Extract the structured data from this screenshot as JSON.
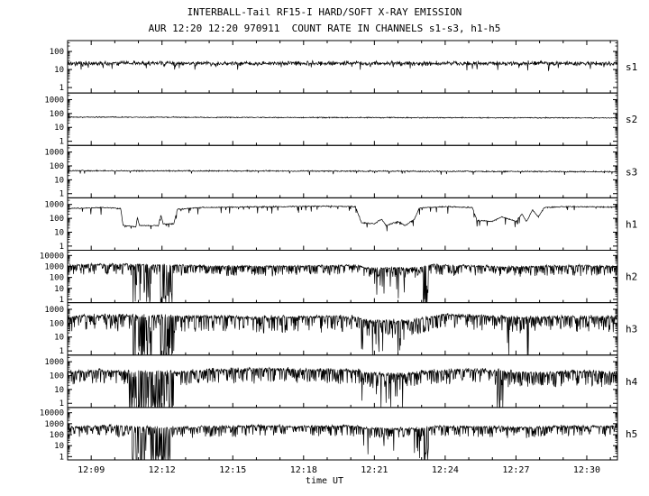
{
  "header": {
    "title": "INTERBALL-Tail RF15-I HARD/SOFT X-RAY EMISSION",
    "subtitle": "AUR 12:20 12:20 970911  COUNT RATE IN CHANNELS s1-s3, h1-h5"
  },
  "xlabel": "time UT",
  "chart_data": {
    "type": "line",
    "title": "INTERBALL-Tail RF15-I HARD/SOFT X-RAY EMISSION",
    "subtitle": "AUR 12:20 12:20 970911  COUNT RATE IN CHANNELS s1-s3, h1-h5",
    "xlabel": "time UT",
    "x_unit": "minutes after 12:00 UT",
    "x_domain": [
      8.0,
      31.3
    ],
    "x_ticks": [
      {
        "t": 9,
        "label": "12:09"
      },
      {
        "t": 12,
        "label": "12:12"
      },
      {
        "t": 15,
        "label": "12:15"
      },
      {
        "t": 18,
        "label": "12:18"
      },
      {
        "t": 21,
        "label": "12:21"
      },
      {
        "t": 24,
        "label": "12:24"
      },
      {
        "t": 27,
        "label": "12:27"
      },
      {
        "t": 30,
        "label": "12:30"
      }
    ],
    "y_scale": "log",
    "panels": [
      {
        "name": "s1",
        "ylim": [
          0.5,
          400
        ],
        "yticks": [
          100,
          10,
          1
        ],
        "base_level_counts": [
          [
            8,
            22
          ],
          [
            31.3,
            22
          ]
        ],
        "noise_log10": 0.15,
        "down_spikes": {
          "prob": 0.04,
          "depth_log10": 0.35
        },
        "dropout_clusters": []
      },
      {
        "name": "s2",
        "ylim": [
          0.5,
          3000
        ],
        "yticks": [
          1000,
          100,
          10,
          1
        ],
        "base_level_counts": [
          [
            8,
            55
          ],
          [
            15,
            52
          ],
          [
            31.3,
            48
          ]
        ],
        "noise_log10": 0.045,
        "down_spikes": {
          "prob": 0.0,
          "depth_log10": 0
        },
        "dropout_clusters": []
      },
      {
        "name": "s3",
        "ylim": [
          0.5,
          3000
        ],
        "yticks": [
          1000,
          100,
          10,
          1
        ],
        "base_level_counts": [
          [
            8,
            45
          ],
          [
            20,
            42
          ],
          [
            31.3,
            38
          ]
        ],
        "noise_log10": 0.055,
        "down_spikes": {
          "prob": 0.03,
          "depth_log10": 0.3
        },
        "dropout_clusters": []
      },
      {
        "name": "h1",
        "ylim": [
          0.5,
          3000
        ],
        "yticks": [
          1000,
          100,
          10,
          1
        ],
        "base_level_counts": [
          [
            8,
            500
          ],
          [
            9.5,
            600
          ],
          [
            10.25,
            500
          ],
          [
            10.35,
            30
          ],
          [
            10.9,
            25
          ],
          [
            10.95,
            120
          ],
          [
            11.05,
            30
          ],
          [
            11.85,
            30
          ],
          [
            11.95,
            180
          ],
          [
            12.05,
            40
          ],
          [
            12.5,
            40
          ],
          [
            12.65,
            450
          ],
          [
            13.5,
            600
          ],
          [
            15,
            650
          ],
          [
            17,
            700
          ],
          [
            19,
            750
          ],
          [
            20.2,
            700
          ],
          [
            20.45,
            50
          ],
          [
            21,
            40
          ],
          [
            21.3,
            90
          ],
          [
            21.5,
            30
          ],
          [
            22,
            60
          ],
          [
            22.3,
            30
          ],
          [
            22.7,
            90
          ],
          [
            22.9,
            550
          ],
          [
            24,
            700
          ],
          [
            25.15,
            600
          ],
          [
            25.35,
            70
          ],
          [
            26,
            60
          ],
          [
            26.4,
            130
          ],
          [
            27,
            60
          ],
          [
            27.25,
            200
          ],
          [
            27.45,
            60
          ],
          [
            27.7,
            400
          ],
          [
            27.95,
            130
          ],
          [
            28.2,
            600
          ],
          [
            29,
            700
          ],
          [
            31.3,
            650
          ]
        ],
        "noise_log10": 0.05,
        "down_spikes": {
          "prob": 0.06,
          "depth_log10": 0.5
        },
        "dropout_clusters": []
      },
      {
        "name": "h2",
        "ylim": [
          0.5,
          30000
        ],
        "yticks": [
          10000,
          1000,
          100,
          10,
          1
        ],
        "base_level_counts": [
          [
            8,
            1200
          ],
          [
            9,
            1500
          ],
          [
            10.5,
            1500
          ],
          [
            12.6,
            1300
          ],
          [
            14,
            1100
          ],
          [
            16,
            1000
          ],
          [
            18,
            1100
          ],
          [
            20.3,
            1200
          ],
          [
            20.6,
            700
          ],
          [
            22.4,
            700
          ],
          [
            23,
            900
          ],
          [
            23.5,
            1400
          ],
          [
            25,
            1200
          ],
          [
            26.5,
            900
          ],
          [
            28,
            1000
          ],
          [
            29.5,
            1200
          ],
          [
            31.3,
            1000
          ]
        ],
        "noise_log10": 0.12,
        "down_spikes": {
          "prob": 0.45,
          "depth_log10": 0.9
        },
        "dropout_clusters": [
          [
            10.7,
            11.55,
            0.3,
            4
          ],
          [
            11.9,
            12.45,
            0.5,
            4
          ],
          [
            20.45,
            21.7,
            0.12,
            2.5
          ],
          [
            21.9,
            22.35,
            0.15,
            2.5
          ],
          [
            23.05,
            23.3,
            0.55,
            4
          ]
        ]
      },
      {
        "name": "h3",
        "ylim": [
          0.5,
          3000
        ],
        "yticks": [
          1000,
          100,
          10,
          1
        ],
        "base_level_counts": [
          [
            8,
            250
          ],
          [
            9,
            350
          ],
          [
            10.5,
            350
          ],
          [
            12.6,
            300
          ],
          [
            14,
            300
          ],
          [
            16,
            250
          ],
          [
            18,
            280
          ],
          [
            20.3,
            280
          ],
          [
            20.6,
            160
          ],
          [
            22.4,
            140
          ],
          [
            23,
            200
          ],
          [
            23.8,
            380
          ],
          [
            25.5,
            330
          ],
          [
            27.5,
            240
          ],
          [
            29,
            280
          ],
          [
            31.3,
            280
          ]
        ],
        "noise_log10": 0.16,
        "down_spikes": {
          "prob": 0.4,
          "depth_log10": 1.1
        },
        "dropout_clusters": [
          [
            10.7,
            11.55,
            0.35,
            4
          ],
          [
            11.9,
            12.5,
            0.55,
            4
          ],
          [
            20.45,
            22.4,
            0.15,
            2.2
          ],
          [
            25.4,
            27.6,
            0.045,
            4
          ]
        ]
      },
      {
        "name": "h4",
        "ylim": [
          0.5,
          3000
        ],
        "yticks": [
          1000,
          100,
          10,
          1
        ],
        "base_level_counts": [
          [
            8,
            180
          ],
          [
            9,
            230
          ],
          [
            10.5,
            200
          ],
          [
            12.6,
            170
          ],
          [
            14,
            250
          ],
          [
            16,
            300
          ],
          [
            18,
            270
          ],
          [
            20.3,
            240
          ],
          [
            20.6,
            140
          ],
          [
            22.2,
            120
          ],
          [
            23,
            180
          ],
          [
            24.5,
            280
          ],
          [
            26,
            240
          ],
          [
            27.5,
            150
          ],
          [
            28.5,
            160
          ],
          [
            29.5,
            200
          ],
          [
            31.3,
            170
          ]
        ],
        "noise_log10": 0.17,
        "down_spikes": {
          "prob": 0.45,
          "depth_log10": 1.0
        },
        "dropout_clusters": [
          [
            10.6,
            12.5,
            0.45,
            4
          ],
          [
            20.45,
            22.2,
            0.13,
            2.2
          ],
          [
            26.2,
            26.45,
            0.5,
            4
          ]
        ]
      },
      {
        "name": "h5",
        "ylim": [
          0.5,
          30000
        ],
        "yticks": [
          10000,
          1000,
          100,
          10,
          1
        ],
        "base_level_counts": [
          [
            8,
            450
          ],
          [
            9.5,
            650
          ],
          [
            11,
            500
          ],
          [
            12.6,
            400
          ],
          [
            14,
            500
          ],
          [
            16,
            600
          ],
          [
            18,
            550
          ],
          [
            20.3,
            600
          ],
          [
            20.6,
            380
          ],
          [
            22.4,
            330
          ],
          [
            23,
            380
          ],
          [
            24,
            600
          ],
          [
            26,
            500
          ],
          [
            27.5,
            420
          ],
          [
            29,
            550
          ],
          [
            30.5,
            600
          ],
          [
            31.3,
            550
          ]
        ],
        "noise_log10": 0.15,
        "down_spikes": {
          "prob": 0.4,
          "depth_log10": 0.9
        },
        "dropout_clusters": [
          [
            10.7,
            12.4,
            0.4,
            4.5
          ],
          [
            20.5,
            23.0,
            0.08,
            2.5
          ],
          [
            23.1,
            23.3,
            0.5,
            4.5
          ]
        ]
      }
    ]
  }
}
